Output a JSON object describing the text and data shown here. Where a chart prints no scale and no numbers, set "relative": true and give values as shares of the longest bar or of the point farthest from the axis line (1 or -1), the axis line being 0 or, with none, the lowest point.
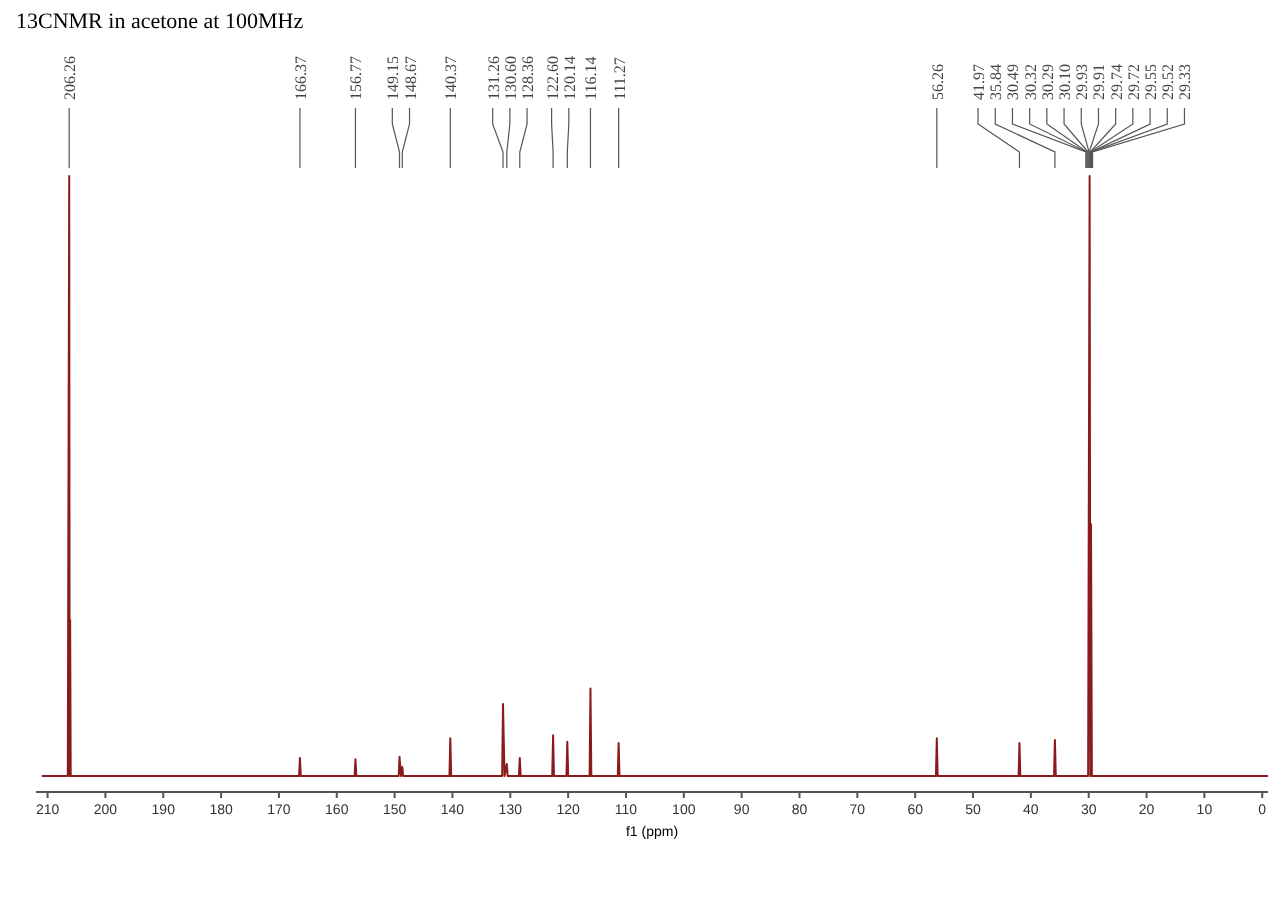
{
  "chart_data": {
    "type": "line",
    "title": "13CNMR in acetone at 100MHz",
    "xlabel": "f1 (ppm)",
    "relative": true,
    "xlim": [
      212,
      -1
    ],
    "xticks": [
      210,
      200,
      190,
      180,
      170,
      160,
      150,
      140,
      130,
      120,
      110,
      100,
      90,
      80,
      70,
      60,
      50,
      40,
      30,
      20,
      10,
      0
    ],
    "grid": false,
    "marker": "none",
    "line_style": "solid",
    "series": [
      {
        "color": "#8b1a1a",
        "x": [
          211,
          206.5,
          206.26,
          206.18,
          206.1,
          206.0,
          166.52,
          166.37,
          166.22,
          156.92,
          156.77,
          156.62,
          149.3,
          149.15,
          148.9,
          148.67,
          148.52,
          140.52,
          140.37,
          140.22,
          131.41,
          131.26,
          131.0,
          130.6,
          130.45,
          128.51,
          128.36,
          128.21,
          122.75,
          122.6,
          122.45,
          120.29,
          120.14,
          119.99,
          116.29,
          116.14,
          115.99,
          111.42,
          111.27,
          111.12,
          56.41,
          56.26,
          56.11,
          42.12,
          41.97,
          41.82,
          35.99,
          35.84,
          35.69,
          30.1,
          29.84,
          29.72,
          29.6,
          29.45,
          -1
        ],
        "values": [
          0,
          0,
          1,
          0,
          0.26,
          0,
          0,
          0.03,
          0,
          0,
          0.028,
          0,
          0,
          0.032,
          0,
          0.015,
          0,
          0,
          0.063,
          0,
          0,
          0.12,
          0,
          0.02,
          0,
          0,
          0.03,
          0,
          0,
          0.068,
          0,
          0,
          0.057,
          0,
          0,
          0.146,
          0,
          0,
          0.055,
          0,
          0,
          0.063,
          0,
          0,
          0.055,
          0,
          0,
          0.06,
          0,
          0,
          1,
          0,
          0.42,
          0,
          0
        ]
      }
    ],
    "annotations": [
      {
        "text": "206.26",
        "x": 206.26
      },
      {
        "text": "166.37",
        "x": 166.37
      },
      {
        "text": "156.77",
        "x": 156.77
      },
      {
        "text": "149.15",
        "x": 149.15
      },
      {
        "text": "148.67",
        "x": 148.67
      },
      {
        "text": "140.37",
        "x": 140.37
      },
      {
        "text": "131.26",
        "x": 131.26
      },
      {
        "text": "130.60",
        "x": 130.6
      },
      {
        "text": "128.36",
        "x": 128.36
      },
      {
        "text": "122.60",
        "x": 122.6
      },
      {
        "text": "120.14",
        "x": 120.14
      },
      {
        "text": "116.14",
        "x": 116.14
      },
      {
        "text": "111.27",
        "x": 111.27
      },
      {
        "text": "56.26",
        "x": 56.26
      },
      {
        "text": "41.97",
        "x": 41.97
      },
      {
        "text": "35.84",
        "x": 35.84
      },
      {
        "text": "30.49",
        "x": 30.49
      },
      {
        "text": "30.32",
        "x": 30.32
      },
      {
        "text": "30.29",
        "x": 30.29
      },
      {
        "text": "30.10",
        "x": 30.1
      },
      {
        "text": "29.93",
        "x": 29.93
      },
      {
        "text": "29.91",
        "x": 29.91
      },
      {
        "text": "29.74",
        "x": 29.74
      },
      {
        "text": "29.72",
        "x": 29.72
      },
      {
        "text": "29.55",
        "x": 29.55
      },
      {
        "text": "29.52",
        "x": 29.52
      },
      {
        "text": "29.33",
        "x": 29.33
      }
    ]
  }
}
